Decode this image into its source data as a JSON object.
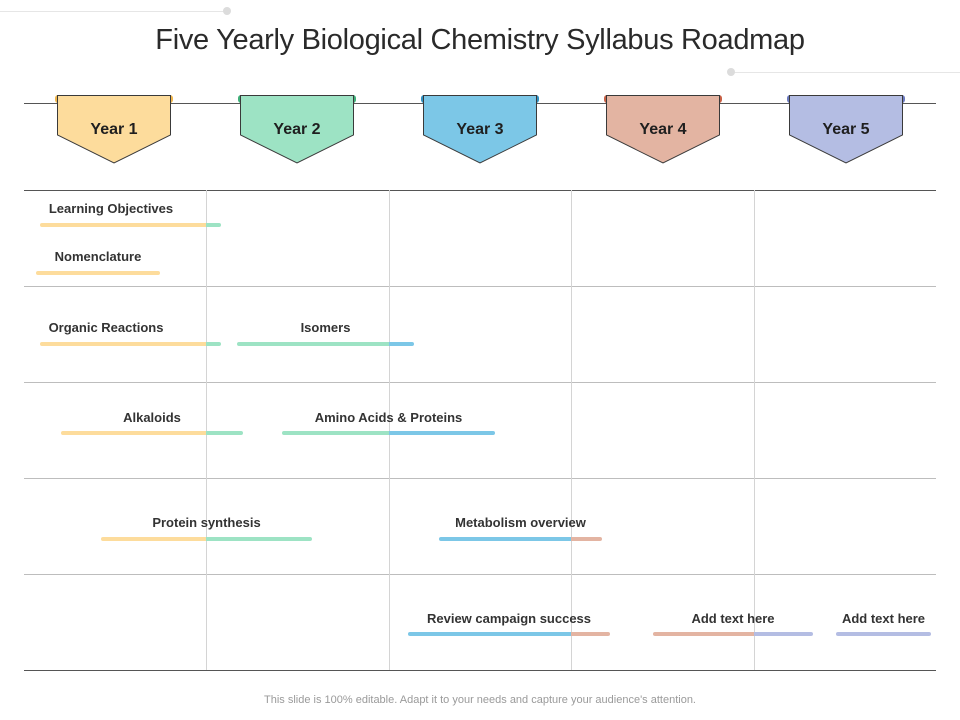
{
  "colors": {
    "year1": "#fddc9c",
    "year2": "#9de3c4",
    "year3": "#7cc7e7",
    "year4": "#e3b4a2",
    "year5": "#b4bde3",
    "year1_tab": "#f0b64c",
    "year2_tab": "#3fae78",
    "year3_tab": "#2f8fbf",
    "year4_tab": "#c76045",
    "year5_tab": "#6a79bf"
  },
  "title": "Five Yearly Biological Chemistry Syllabus Roadmap",
  "years": [
    {
      "label": "Year 1"
    },
    {
      "label": "Year 2"
    },
    {
      "label": "Year 3"
    },
    {
      "label": "Year 4"
    },
    {
      "label": "Year 5"
    }
  ],
  "tasks": [
    {
      "label": "Learning Objectives"
    },
    {
      "label": "Nomenclature"
    },
    {
      "label": "Organic Reactions"
    },
    {
      "label": "Isomers"
    },
    {
      "label": "Alkaloids"
    },
    {
      "label": "Amino Acids & Proteins"
    },
    {
      "label": "Protein synthesis"
    },
    {
      "label": "Metabolism overview"
    },
    {
      "label": "Review campaign success"
    },
    {
      "label": "Add text here"
    },
    {
      "label": "Add text here"
    }
  ],
  "footer": "This slide is 100% editable. Adapt it to your needs and capture your audience's attention."
}
